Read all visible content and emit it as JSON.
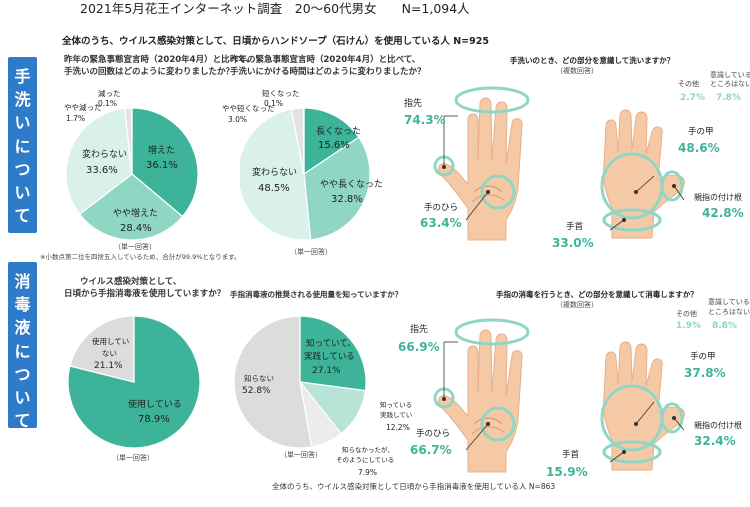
{
  "header": {
    "title": "2021年5月花王インターネット調査　20〜60代男女　　N=1,094人"
  },
  "sections": {
    "handwash": {
      "tab_chars": [
        "手",
        "洗",
        "い",
        "に",
        "つ",
        "い",
        "て"
      ],
      "subtitle": "全体のうち、ウイルス感染対策として、日頃からハンドソープ（石けん）を使用している人 N=925",
      "q1_lines": [
        "昨年の緊急事態宣言時（2020年4月）と比べて、",
        "手洗いの回数はどのように変わりましたか？"
      ],
      "q2_lines": [
        "昨年の緊急事態宣言時（2020年4月）と比べて、",
        "手洗いにかける時間はどのように変わりましたか？"
      ],
      "q3_title": "手洗いのとき、どの部分を意識して洗いますか？",
      "q3_sub": "（複数回答）",
      "single_answer_1": "（単一回答）",
      "single_answer_2": "（単一回答）",
      "footnote": "※小数点第二位を四捨五入しているため、合計が99.9%となります。"
    },
    "disinfect": {
      "tab_chars": [
        "消",
        "毒",
        "液",
        "に",
        "つ",
        "い",
        "て"
      ],
      "q1_lines": [
        "ウイルス感染対策として、",
        "日頃から手指消毒液を使用していますか？"
      ],
      "q2_title": "手指消毒液の推奨される使用量を知っていますか？",
      "q3_title": "手指の消毒を行うとき、どの部分を意識して消毒しますか？",
      "q3_sub": "（複数回答）",
      "single_answer_1": "（単一回答）",
      "single_answer_2": "（単一回答）",
      "bottom_note": "全体のうち、ウイルス感染対策として日頃から手指消毒液を使用している人 N=863"
    }
  },
  "chart_data": [
    {
      "type": "pie",
      "slices": [
        {
          "label": "増えた",
          "value": 36.1
        },
        {
          "label": "やや増えた",
          "value": 28.4
        },
        {
          "label": "変わらない",
          "value": 33.6
        },
        {
          "label": "やや減った",
          "value": 1.7
        },
        {
          "label": "減った",
          "value": 0.1
        }
      ],
      "colors": [
        "#3db39a",
        "#8fd6c3",
        "#d9f1ea",
        "#e3e3e3",
        "#f2f2f2"
      ]
    },
    {
      "type": "pie",
      "slices": [
        {
          "label": "長くなった",
          "value": 15.6
        },
        {
          "label": "やや長くなった",
          "value": 32.8
        },
        {
          "label": "変わらない",
          "value": 48.5
        },
        {
          "label": "やや短くなった",
          "value": 3.0
        },
        {
          "label": "短くなった",
          "value": 0.1
        }
      ],
      "colors": [
        "#3db39a",
        "#8fd6c3",
        "#d9f1ea",
        "#e3e3e3",
        "#f2f2f2"
      ]
    },
    {
      "type": "bar",
      "categories": [
        "指先",
        "手のひら",
        "手首",
        "手の甲",
        "親指の付け根",
        "その他",
        "意識しているところはない"
      ],
      "values": [
        74.3,
        63.4,
        33.0,
        48.6,
        42.8,
        2.7,
        7.8
      ]
    },
    {
      "type": "pie",
      "slices": [
        {
          "label": "使用している",
          "value": 78.9
        },
        {
          "label": "使用していない",
          "value": 21.1
        }
      ],
      "colors": [
        "#3db39a",
        "#dcdcdc"
      ]
    },
    {
      "type": "pie",
      "slices": [
        {
          "label": "知っていて、実践している",
          "value": 27.1
        },
        {
          "label": "知っている実践していない",
          "value": 12.2
        },
        {
          "label": "知らなかったが、そのようにしている",
          "value": 7.9
        },
        {
          "label": "知らない",
          "value": 52.8
        }
      ],
      "colors": [
        "#3db39a",
        "#b7e4d7",
        "#ececec",
        "#dcdcdc"
      ]
    },
    {
      "type": "bar",
      "categories": [
        "指先",
        "手のひら",
        "手首",
        "手の甲",
        "親指の付け根",
        "その他",
        "意識しているところはない"
      ],
      "values": [
        66.9,
        66.7,
        15.9,
        37.8,
        32.4,
        1.9,
        8.8
      ]
    }
  ],
  "pie_labels": {
    "p1": [
      "増えた",
      "36.1%",
      "やや増えた",
      "28.4%",
      "変わらない",
      "33.6%",
      "やや減った",
      "1.7%",
      "減った",
      "0.1%"
    ],
    "p2": [
      "長くなった",
      "15.6%",
      "やや長くなった",
      "32.8%",
      "変わらない",
      "48.5%",
      "やや短くなった",
      "3.0%",
      "短くなった",
      "0.1%"
    ],
    "p3": [
      "使用している",
      "78.9%",
      "使用してい",
      "ない",
      "21.1%"
    ],
    "p4": [
      "知っていて、",
      "実践している",
      "27.1%",
      "知っている",
      "実践してい",
      "12.2%",
      "知らなかったが、",
      "そのようにしている",
      "7.9%",
      "知らない",
      "52.8%"
    ]
  },
  "hand_labels": {
    "h1": {
      "fingertip": "指先",
      "fingertip_pct": "74.3%",
      "palm": "手のひら",
      "palm_pct": "63.4%",
      "wrist": "手首",
      "wrist_pct": "33.0%",
      "back": "手の甲",
      "back_pct": "48.6%",
      "thumb": "親指の付け根",
      "thumb_pct": "42.8%",
      "other": "その他",
      "other_pct": "2.7%",
      "none1": "意識している",
      "none2": "ところはない",
      "none_pct": "7.8%"
    },
    "h2": {
      "fingertip": "指先",
      "fingertip_pct": "66.9%",
      "palm": "手のひら",
      "palm_pct": "66.7%",
      "wrist": "手首",
      "wrist_pct": "15.9%",
      "back": "手の甲",
      "back_pct": "37.8%",
      "thumb": "親指の付け根",
      "thumb_pct": "32.4%",
      "other": "その他",
      "other_pct": "1.9%",
      "none1": "意識している",
      "none2": "ところはない",
      "none_pct": "8.8%"
    }
  }
}
